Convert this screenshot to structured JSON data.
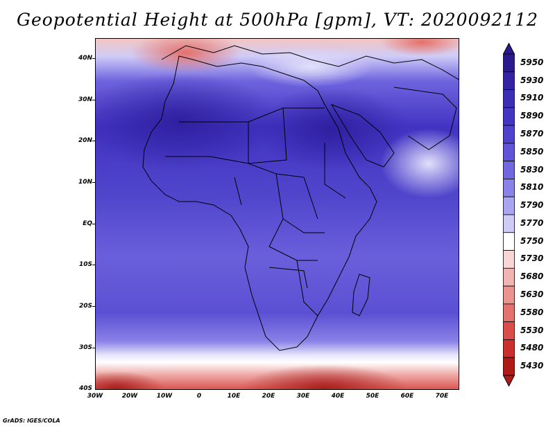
{
  "title": "Geopotential Height at 500hPa [gpm], VT: 2020092112",
  "footer": "GrADS: IGES/COLA",
  "map": {
    "region": "Africa and surroundings",
    "field": "500hPa geopotential height",
    "lat_labels": [
      "40N",
      "30N",
      "20N",
      "10N",
      "EQ",
      "10S",
      "20S",
      "30S",
      "40S"
    ],
    "lon_labels": [
      "30W",
      "20W",
      "10W",
      "0",
      "10E",
      "20E",
      "30E",
      "40E",
      "50E",
      "60E",
      "70E"
    ]
  },
  "colorbar": {
    "levels": [
      "5950",
      "5930",
      "5910",
      "5890",
      "5870",
      "5850",
      "5830",
      "5810",
      "5790",
      "5770",
      "5750",
      "5730",
      "5680",
      "5630",
      "5580",
      "5530",
      "5480",
      "5430"
    ],
    "colors": [
      "#2b1a8e",
      "#3424a3",
      "#3b2fb5",
      "#4536c2",
      "#4f42cc",
      "#5f55d6",
      "#7167df",
      "#8a82e7",
      "#aaa5f0",
      "#cfcbf7",
      "#ffffff",
      "#f6d7d5",
      "#f0b5b2",
      "#ea938f",
      "#e3716c",
      "#d94e4a",
      "#c92f2c",
      "#ad1a18"
    ]
  }
}
